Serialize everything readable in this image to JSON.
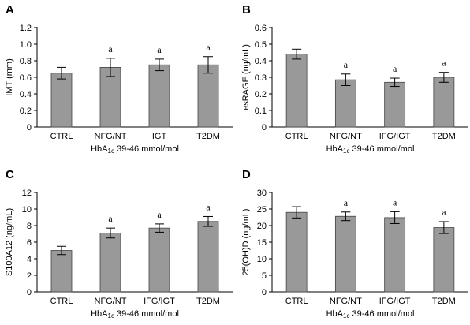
{
  "chart_data": [
    {
      "type": "bar",
      "panel": "A",
      "categories": [
        "CTRL",
        "NFG/NT",
        "IGT",
        "T2DM"
      ],
      "values": [
        0.65,
        0.72,
        0.75,
        0.75
      ],
      "errors": [
        0.07,
        0.11,
        0.07,
        0.1
      ],
      "annotations": [
        "",
        "a",
        "a",
        "a"
      ],
      "ylabel": "IMT (mm)",
      "xlabel": "HbA1c 39-46 mmol/mol",
      "ylim": [
        0,
        1.2
      ],
      "yticks": [
        "0",
        "0.2",
        "0.4",
        "0.6",
        "0.8",
        "1.0",
        "1.2"
      ],
      "bar_color": "#999999"
    },
    {
      "type": "bar",
      "panel": "B",
      "categories": [
        "CTRL",
        "NFG/NT",
        "IFG/IGT",
        "T2DM"
      ],
      "values": [
        0.44,
        0.285,
        0.27,
        0.3
      ],
      "errors": [
        0.03,
        0.035,
        0.025,
        0.03
      ],
      "annotations": [
        "",
        "a",
        "a",
        "a"
      ],
      "ylabel": "esRAGE (ng/mL)",
      "xlabel": "HbA1c 39-46 mmol/mol",
      "ylim": [
        0,
        0.6
      ],
      "yticks": [
        "0",
        "0.1",
        "0.2",
        "0.3",
        "0.4",
        "0.5",
        "0.6"
      ],
      "bar_color": "#999999"
    },
    {
      "type": "bar",
      "panel": "C",
      "categories": [
        "CTRL",
        "NFG/NT",
        "IFG/IGT",
        "T2DM"
      ],
      "values": [
        5.0,
        7.1,
        7.7,
        8.5
      ],
      "errors": [
        0.5,
        0.6,
        0.5,
        0.6
      ],
      "annotations": [
        "",
        "a",
        "a",
        "a"
      ],
      "ylabel": "S100A12 (ng/mL)",
      "xlabel": "HbA1c 39-46 mmol/mol",
      "ylim": [
        0,
        12
      ],
      "yticks": [
        "0",
        "2",
        "4",
        "6",
        "8",
        "10",
        "12"
      ],
      "bar_color": "#999999"
    },
    {
      "type": "bar",
      "panel": "D",
      "categories": [
        "CTRL",
        "NFG/NT",
        "IFG/IGT",
        "T2DM"
      ],
      "values": [
        24.0,
        22.8,
        22.4,
        19.4
      ],
      "errors": [
        1.7,
        1.3,
        1.8,
        1.8
      ],
      "annotations": [
        "",
        "a",
        "a",
        "a"
      ],
      "ylabel": "25(OH)D (ng/mL)",
      "xlabel": "HbA1c 39-46 mmol/mol",
      "ylim": [
        0,
        30
      ],
      "yticks": [
        "0",
        "5",
        "10",
        "15",
        "20",
        "25",
        "30"
      ],
      "bar_color": "#999999"
    }
  ]
}
